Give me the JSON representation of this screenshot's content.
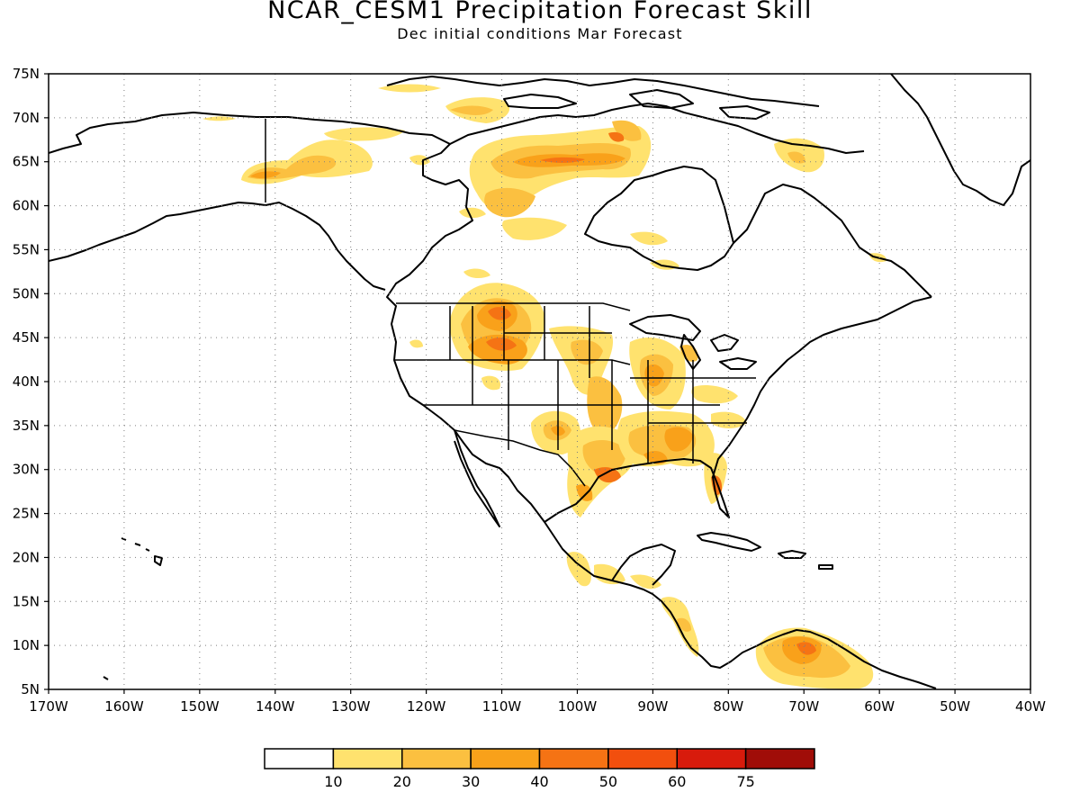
{
  "title": "NCAR_CESM1 Precipitation Forecast Skill",
  "subtitle": "Dec initial conditions  Mar Forecast",
  "map": {
    "lat_ticks": [
      "75N",
      "70N",
      "65N",
      "60N",
      "55N",
      "50N",
      "45N",
      "40N",
      "35N",
      "30N",
      "25N",
      "20N",
      "15N",
      "10N",
      "5N"
    ],
    "lon_ticks": [
      "170W",
      "160W",
      "150W",
      "140W",
      "130W",
      "120W",
      "110W",
      "100W",
      "90W",
      "80W",
      "70W",
      "60W",
      "50W",
      "40W"
    ],
    "lat_range": [
      5,
      75
    ],
    "lon_range": [
      -170,
      -40
    ],
    "gridlines": "dotted"
  },
  "legend": {
    "levels": [
      "10",
      "20",
      "30",
      "40",
      "50",
      "60",
      "75"
    ],
    "colors": [
      "#ffffff",
      "#ffe26e",
      "#fbc040",
      "#f9a11a",
      "#f57314",
      "#f24f0e",
      "#d81b0c",
      "#a00d08"
    ]
  },
  "skill_regions": [
    {
      "lon": -110,
      "lat": 48,
      "level": 5
    },
    {
      "lon": -108,
      "lat": 44,
      "level": 4
    },
    {
      "lon": -101,
      "lat": 65,
      "level": 4
    },
    {
      "lon": -141,
      "lat": 63,
      "level": 3
    },
    {
      "lon": -94,
      "lat": 41,
      "level": 4
    },
    {
      "lon": -86,
      "lat": 33,
      "level": 3
    },
    {
      "lon": -81,
      "lat": 28.5,
      "level": 5
    },
    {
      "lon": -70,
      "lat": 9,
      "level": 5
    },
    {
      "lon": -103,
      "lat": 34,
      "level": 3
    },
    {
      "lon": -99,
      "lat": 29.5,
      "level": 4
    }
  ]
}
